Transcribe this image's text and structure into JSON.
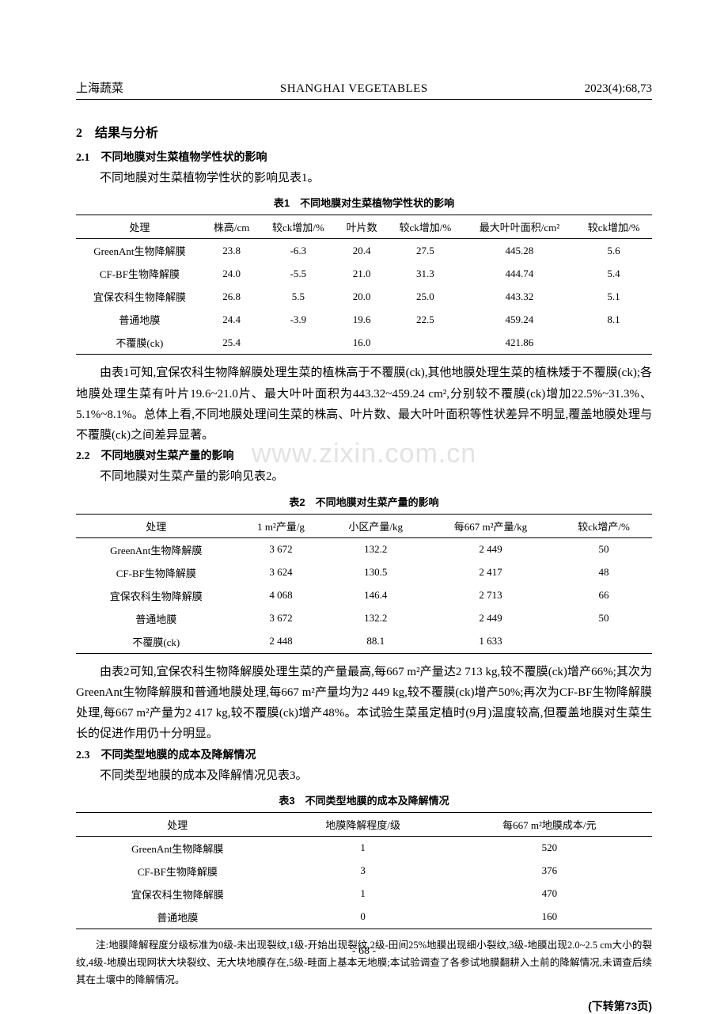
{
  "header": {
    "left": "上海蔬菜",
    "center": "SHANGHAI VEGETABLES",
    "right": "2023(4):68,73"
  },
  "section2": {
    "num": "2",
    "title": "结果与分析"
  },
  "section21": {
    "num": "2.1",
    "title": "不同地膜对生菜植物学性状的影响",
    "para": "不同地膜对生菜植物学性状的影响见表1。"
  },
  "table1": {
    "title": "表1　不同地膜对生菜植物学性状的影响",
    "headers": [
      "处理",
      "株高/cm",
      "较ck增加/%",
      "叶片数",
      "较ck增加/%",
      "最大叶叶面积/cm²",
      "较ck增加/%"
    ],
    "rows": [
      [
        "GreenAnt生物降解膜",
        "23.8",
        "-6.3",
        "20.4",
        "27.5",
        "445.28",
        "5.6"
      ],
      [
        "CF-BF生物降解膜",
        "24.0",
        "-5.5",
        "21.0",
        "31.3",
        "444.74",
        "5.4"
      ],
      [
        "宜保农科生物降解膜",
        "26.8",
        "5.5",
        "20.0",
        "25.0",
        "443.32",
        "5.1"
      ],
      [
        "普通地膜",
        "24.4",
        "-3.9",
        "19.6",
        "22.5",
        "459.24",
        "8.1"
      ],
      [
        "不覆膜(ck)",
        "25.4",
        "",
        "16.0",
        "",
        "421.86",
        ""
      ]
    ]
  },
  "para_after_t1": "由表1可知,宜保农科生物降解膜处理生菜的植株高于不覆膜(ck),其他地膜处理生菜的植株矮于不覆膜(ck);各地膜处理生菜有叶片19.6~21.0片、最大叶叶面积为443.32~459.24 cm²,分别较不覆膜(ck)增加22.5%~31.3%、5.1%~8.1%。总体上看,不同地膜处理间生菜的株高、叶片数、最大叶叶面积等性状差异不明显,覆盖地膜处理与不覆膜(ck)之间差异显著。",
  "section22": {
    "num": "2.2",
    "title": "不同地膜对生菜产量的影响",
    "para": "不同地膜对生菜产量的影响见表2。"
  },
  "table2": {
    "title": "表2　不同地膜对生菜产量的影响",
    "headers": [
      "处理",
      "1 m²产量/g",
      "小区产量/kg",
      "每667 m²产量/kg",
      "较ck增产/%"
    ],
    "rows": [
      [
        "GreenAnt生物降解膜",
        "3 672",
        "132.2",
        "2 449",
        "50"
      ],
      [
        "CF-BF生物降解膜",
        "3 624",
        "130.5",
        "2 417",
        "48"
      ],
      [
        "宜保农科生物降解膜",
        "4 068",
        "146.4",
        "2 713",
        "66"
      ],
      [
        "普通地膜",
        "3 672",
        "132.2",
        "2 449",
        "50"
      ],
      [
        "不覆膜(ck)",
        "2 448",
        "88.1",
        "1 633",
        ""
      ]
    ]
  },
  "para_after_t2": "由表2可知,宜保农科生物降解膜处理生菜的产量最高,每667 m²产量达2 713 kg,较不覆膜(ck)增产66%;其次为GreenAnt生物降解膜和普通地膜处理,每667 m²产量均为2 449 kg,较不覆膜(ck)增产50%;再次为CF-BF生物降解膜处理,每667 m²产量为2 417 kg,较不覆膜(ck)增产48%。本试验生菜虽定植时(9月)温度较高,但覆盖地膜对生菜生长的促进作用仍十分明显。",
  "section23": {
    "num": "2.3",
    "title": "不同类型地膜的成本及降解情况",
    "para": "不同类型地膜的成本及降解情况见表3。"
  },
  "table3": {
    "title": "表3　不同类型地膜的成本及降解情况",
    "headers": [
      "处理",
      "地膜降解程度/级",
      "每667 m²地膜成本/元"
    ],
    "rows": [
      [
        "GreenAnt生物降解膜",
        "1",
        "520"
      ],
      [
        "CF-BF生物降解膜",
        "3",
        "376"
      ],
      [
        "宜保农科生物降解膜",
        "1",
        "470"
      ],
      [
        "普通地膜",
        "0",
        "160"
      ]
    ]
  },
  "note_t3": "注:地膜降解程度分级标准为0级-未出现裂纹,1级-开始出现裂纹,2级-田间25%地膜出现细小裂纹,3级-地膜出现2.0~2.5 cm大小的裂纹,4级-地膜出现网状大块裂纹、无大块地膜存在,5级-畦面上基本无地膜;本试验调查了各参试地膜翻耕入土前的降解情况,未调查后续其在土壤中的降解情况。",
  "continue": "(下转第73页)",
  "pagenum": "- 68 -",
  "watermark": "www.zixin.com.cn"
}
